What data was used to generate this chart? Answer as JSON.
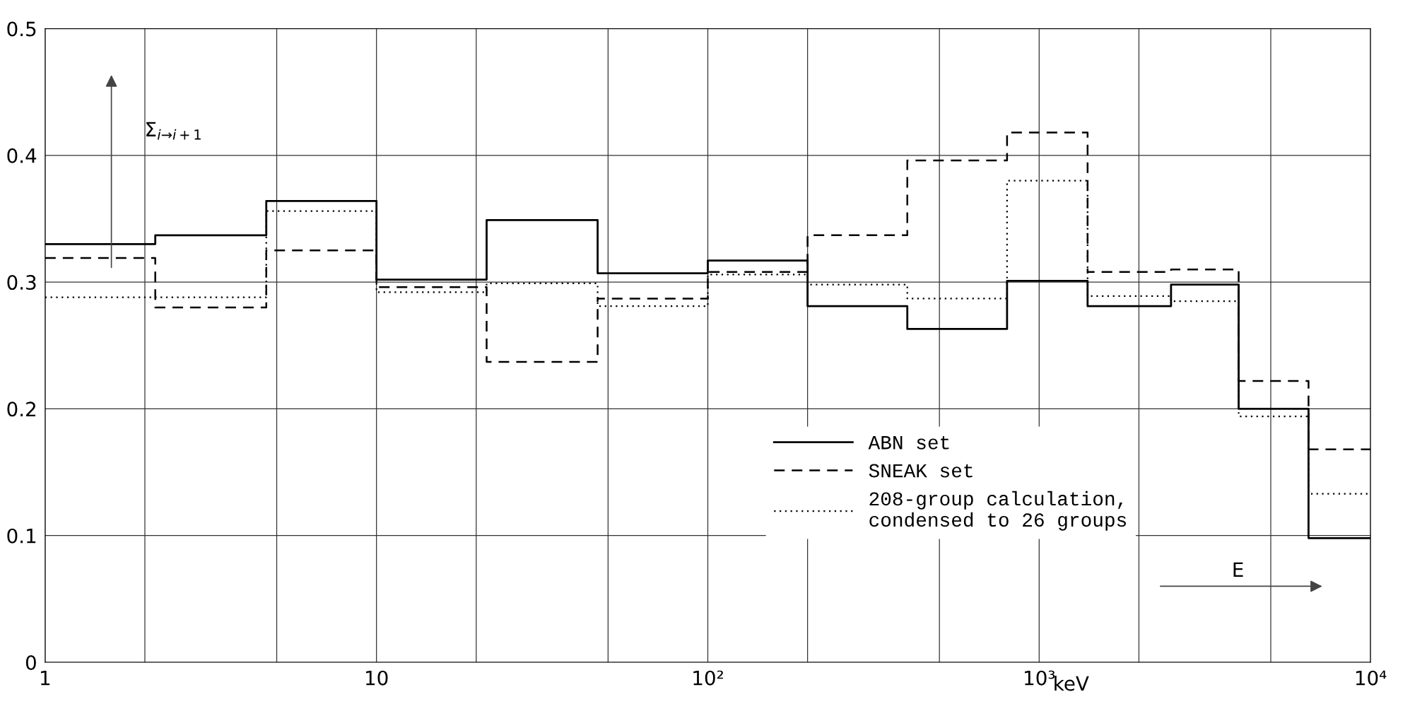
{
  "chart_data": {
    "type": "step",
    "xlabel": "E",
    "ylabel": "Σ$_{i→i+1}$",
    "annotations": [
      "keV"
    ],
    "x": [
      1,
      2.15,
      4.65,
      10,
      21.5,
      46.5,
      100,
      200,
      400,
      800,
      1400,
      2500,
      4000,
      6500,
      10000
    ],
    "series": [
      {
        "name": "ABN set",
        "color": "#000000",
        "line_style": "solid",
        "values": [
          0.33,
          0.337,
          0.364,
          0.302,
          0.349,
          0.307,
          0.317,
          0.281,
          0.263,
          0.301,
          0.281,
          0.298,
          0.2,
          0.098,
          0.098
        ]
      },
      {
        "name": "SNEAK set",
        "color": "#000000",
        "line_style": "dashed",
        "values": [
          0.319,
          0.28,
          0.325,
          0.296,
          0.237,
          0.287,
          0.308,
          0.337,
          0.396,
          0.418,
          0.308,
          0.31,
          0.222,
          0.168,
          0.168
        ]
      },
      {
        "name": "208-group calculation,\ncondensed to 26 groups",
        "color": "#000000",
        "line_style": "dotted",
        "values": [
          0.288,
          0.288,
          0.356,
          0.292,
          0.299,
          0.281,
          0.306,
          0.298,
          0.287,
          0.38,
          0.289,
          0.285,
          0.194,
          0.133,
          0.133
        ]
      }
    ],
    "log": "x",
    "xlim": [
      1,
      10000
    ],
    "ylim": [
      0,
      0.5
    ],
    "xticks": [
      1,
      {
        "value": 2,
        "label": null
      },
      {
        "value": 5,
        "label": null
      },
      10,
      {
        "value": 20,
        "label": null
      },
      {
        "value": 50,
        "label": null
      },
      {
        "value": 100,
        "label": "10²"
      },
      {
        "value": 200,
        "label": null
      },
      {
        "value": 500,
        "label": null
      },
      {
        "value": 1000,
        "label": "10³"
      },
      {
        "value": 2000,
        "label": null
      },
      {
        "value": 5000,
        "label": null
      },
      {
        "value": 10000,
        "label": "10⁴"
      }
    ],
    "yticks": [
      0,
      0.1,
      0.2,
      0.3,
      0.4,
      0.5
    ],
    "grid": true,
    "legend": "bottom right"
  }
}
